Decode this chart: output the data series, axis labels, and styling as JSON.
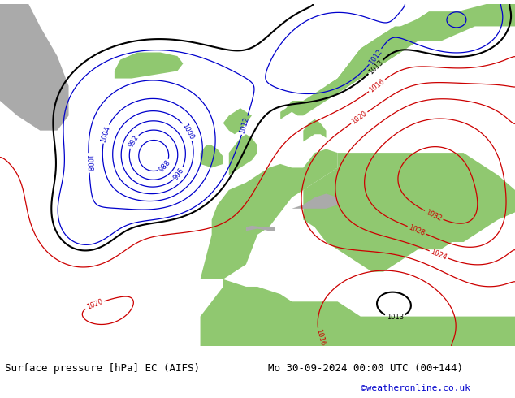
{
  "title_left": "Surface pressure [hPa] EC (AIFS)",
  "title_right": "Mo 30-09-2024 00:00 UTC (00+144)",
  "credit": "©weatheronline.co.uk",
  "ocean_color": "#d8d8d8",
  "land_color": "#90c870",
  "mountain_color": "#aaaaaa",
  "contour_blue_color": "#0000cc",
  "contour_black_color": "#000000",
  "contour_red_color": "#cc0000",
  "label_fontsize": 6,
  "footer_fontsize": 9,
  "credit_fontsize": 8,
  "credit_color": "#0000cc",
  "figsize": [
    6.34,
    4.9
  ],
  "dpi": 100
}
